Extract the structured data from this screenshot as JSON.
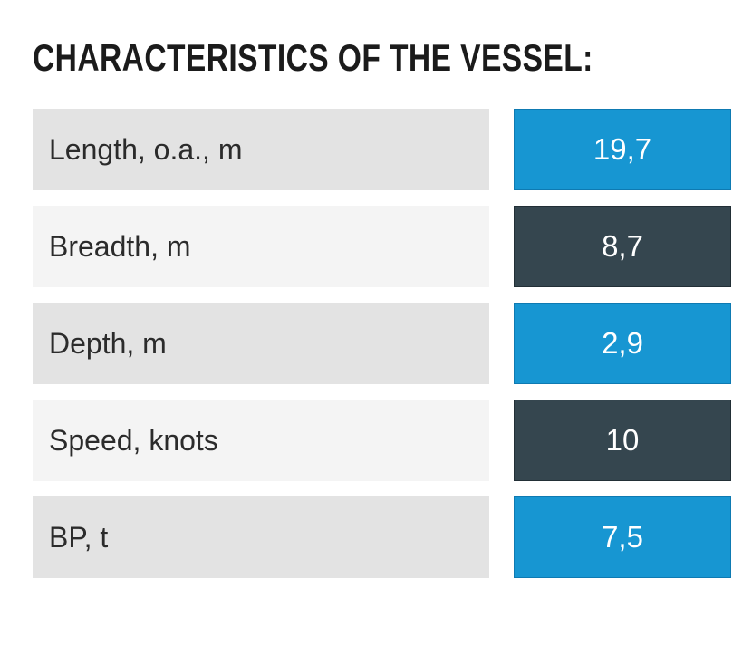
{
  "section": {
    "title": "CHARACTERISTICS OF THE VESSEL:"
  },
  "table": {
    "rows": [
      {
        "label": "Length, o.a., m",
        "value": "19,7",
        "accent": "blue"
      },
      {
        "label": "Breadth, m",
        "value": "8,7",
        "accent": "dark"
      },
      {
        "label": "Depth, m",
        "value": "2,9",
        "accent": "blue"
      },
      {
        "label": "Speed, knots",
        "value": "10",
        "accent": "dark"
      },
      {
        "label": "BP, t",
        "value": "7,5",
        "accent": "blue"
      }
    ]
  },
  "colors": {
    "accent_blue": "#1796d2",
    "accent_dark": "#35464f",
    "label_row_gray": "#e3e3e3",
    "label_row_light": "#f4f4f4"
  }
}
